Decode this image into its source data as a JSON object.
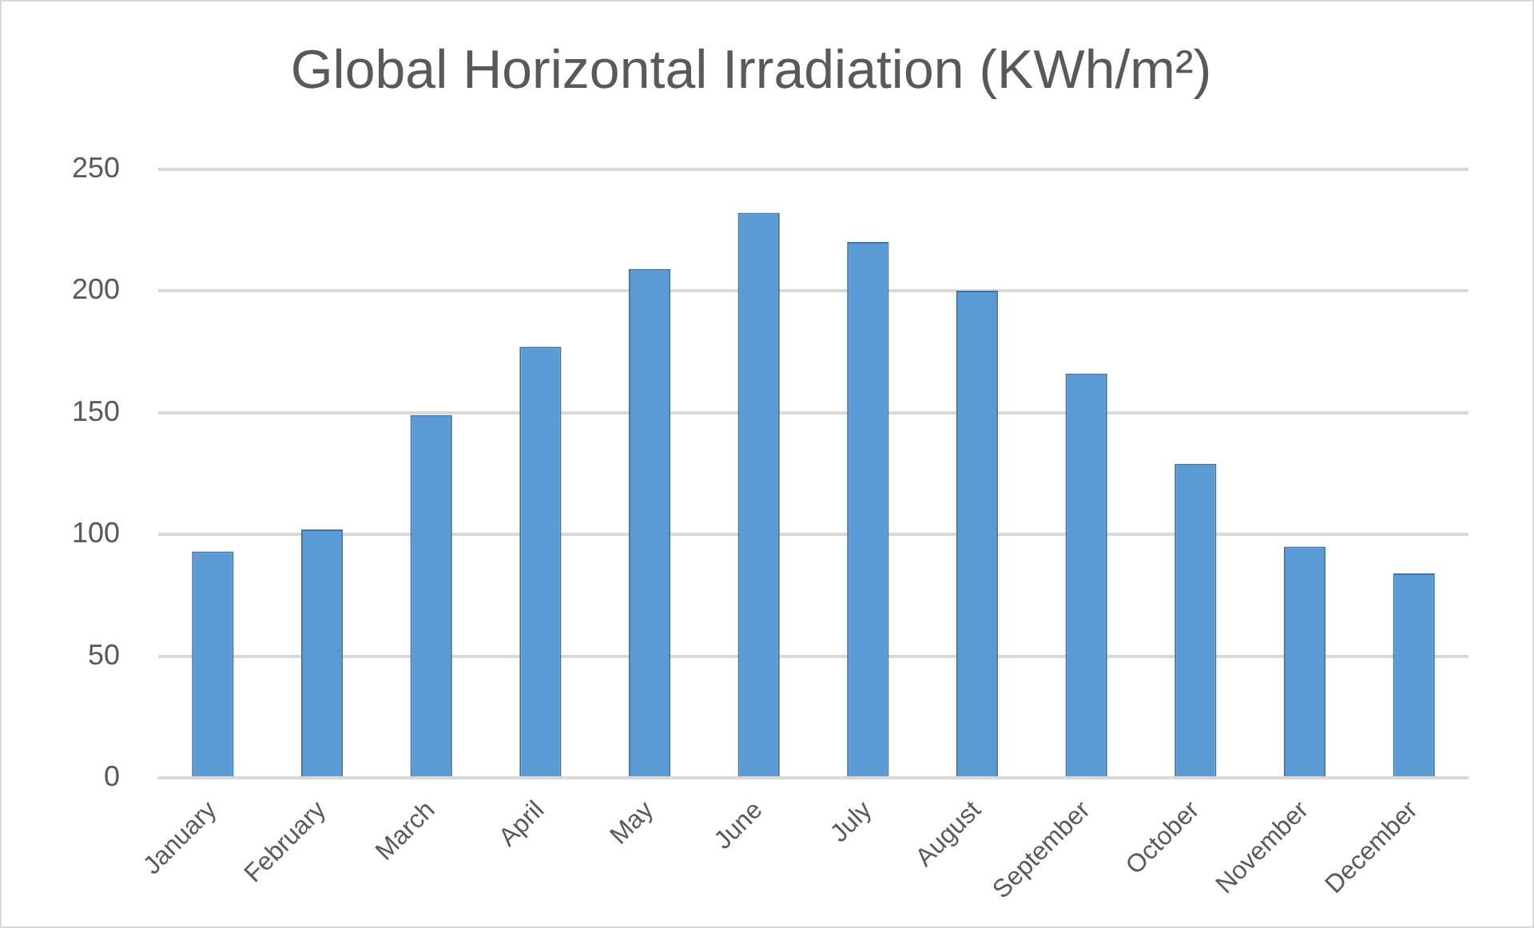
{
  "chart_data": {
    "type": "bar",
    "title": "Global Horizontal Irradiation (KWh/m²)",
    "categories": [
      "January",
      "February",
      "March",
      "April",
      "May",
      "June",
      "July",
      "August",
      "September",
      "October",
      "November",
      "December"
    ],
    "values": [
      93,
      102,
      149,
      177,
      209,
      232,
      220,
      200,
      166,
      129,
      95,
      84
    ],
    "color": "#5b9bd5",
    "ylim": [
      0,
      250
    ],
    "yticks": [
      0,
      50,
      100,
      150,
      200,
      250
    ],
    "grid": "y"
  }
}
